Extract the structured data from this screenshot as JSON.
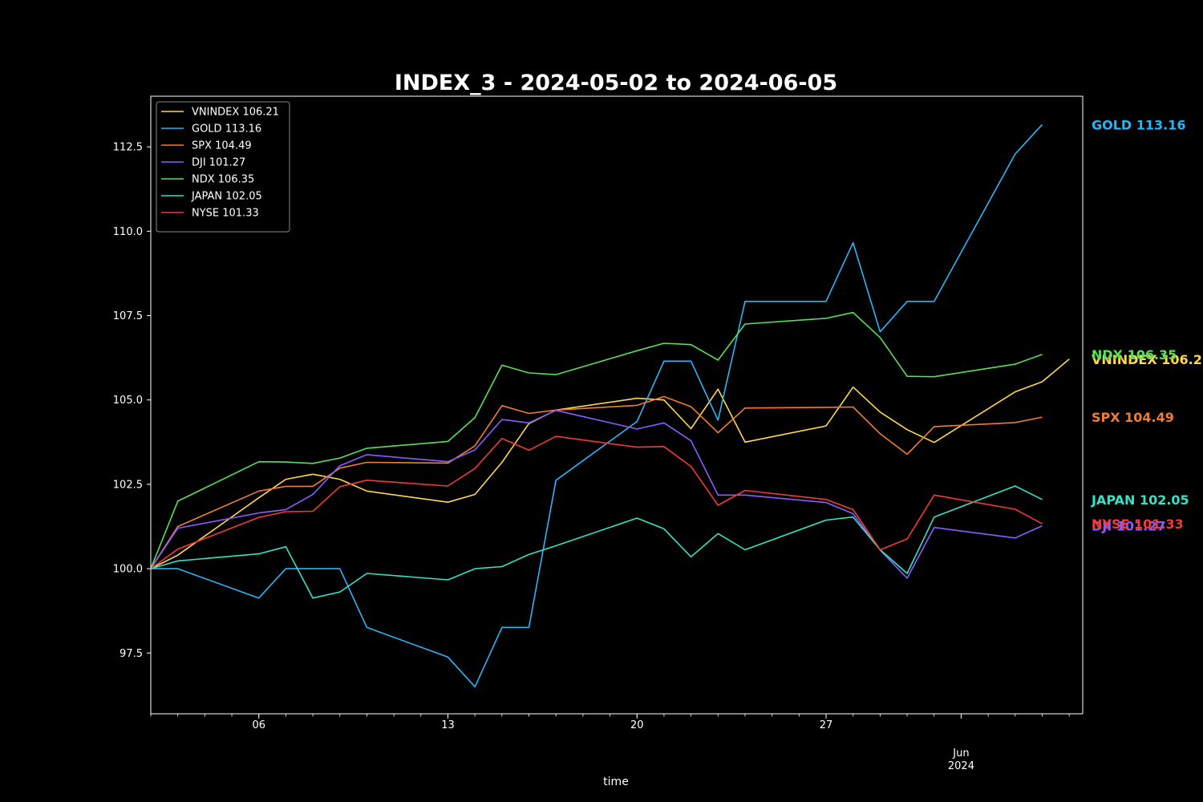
{
  "chart_data": {
    "type": "line",
    "title": "INDEX_3 - 2024-05-02 to 2024-06-05",
    "xlabel": "time",
    "ylabel": "",
    "ylim": [
      95.7,
      114.0
    ],
    "yticks": [
      97.5,
      100.0,
      102.5,
      105.0,
      107.5,
      110.0,
      112.5
    ],
    "ytick_labels": [
      "97.5",
      "100.0",
      "102.5",
      "105.0",
      "107.5",
      "110.0",
      "112.5"
    ],
    "xlim": [
      "2024-05-02",
      "2024-06-05 12:00"
    ],
    "xticks": [
      {
        "date": "2024-05-06",
        "label": "06",
        "sub": ""
      },
      {
        "date": "2024-05-13",
        "label": "13",
        "sub": ""
      },
      {
        "date": "2024-05-20",
        "label": "20",
        "sub": ""
      },
      {
        "date": "2024-05-27",
        "label": "27",
        "sub": ""
      },
      {
        "date": "2024-06-01",
        "label": "Jun",
        "sub": "2024"
      }
    ],
    "grid": false,
    "legend": "top-left",
    "x": [
      "2024-05-02",
      "2024-05-03",
      "2024-05-06",
      "2024-05-07",
      "2024-05-08",
      "2024-05-09",
      "2024-05-10",
      "2024-05-13",
      "2024-05-14",
      "2024-05-15",
      "2024-05-16",
      "2024-05-17",
      "2024-05-20",
      "2024-05-21",
      "2024-05-22",
      "2024-05-23",
      "2024-05-24",
      "2024-05-27",
      "2024-05-28",
      "2024-05-29",
      "2024-05-30",
      "2024-05-31",
      "2024-06-03",
      "2024-06-04",
      "2024-06-05"
    ],
    "series": [
      {
        "name": "VNINDEX 106.21",
        "label": "VNINDEX 106.21",
        "color": "#ffd84a",
        "last": 106.21,
        "values": [
          100.0,
          100.4,
          102.1,
          102.65,
          102.8,
          102.65,
          102.3,
          101.97,
          102.2,
          103.15,
          104.3,
          104.7,
          105.05,
          105.0,
          104.15,
          105.32,
          103.75,
          104.23,
          105.38,
          104.64,
          104.12,
          103.74,
          105.24,
          105.54,
          106.21
        ]
      },
      {
        "name": "GOLD 113.16",
        "label": "GOLD 113.16",
        "color": "#29b6f6",
        "last": 113.16,
        "values": [
          100.0,
          100.0,
          99.13,
          100.0,
          100.0,
          100.0,
          98.26,
          97.38,
          96.5,
          98.26,
          98.26,
          102.62,
          104.36,
          106.15,
          106.15,
          104.4,
          107.92,
          107.92,
          109.66,
          107.02,
          107.92,
          107.92,
          112.29,
          113.16,
          null
        ]
      },
      {
        "name": "SPX 104.49",
        "label": "SPX 104.49",
        "color": "#f07d32",
        "last": 104.49,
        "values": [
          100.0,
          101.25,
          102.3,
          102.44,
          102.44,
          102.98,
          103.15,
          103.13,
          103.64,
          104.83,
          104.6,
          104.7,
          104.84,
          105.1,
          104.8,
          104.03,
          104.76,
          104.78,
          104.79,
          104.0,
          103.39,
          104.21,
          104.33,
          104.49,
          null
        ]
      },
      {
        "name": "DJI 101.27",
        "label": "DJI 101.27",
        "color": "#8a5cff",
        "last": 101.27,
        "values": [
          100.0,
          101.2,
          101.65,
          101.75,
          102.2,
          103.05,
          103.38,
          103.17,
          103.52,
          104.42,
          104.32,
          104.69,
          104.14,
          104.32,
          103.79,
          102.18,
          102.18,
          101.96,
          101.63,
          100.55,
          99.72,
          101.22,
          100.91,
          101.27,
          null
        ]
      },
      {
        "name": "NDX 106.35",
        "label": "NDX 106.35",
        "color": "#57e05a",
        "last": 106.35,
        "values": [
          100.0,
          102.0,
          103.17,
          103.16,
          103.12,
          103.28,
          103.57,
          103.77,
          104.48,
          106.03,
          105.8,
          105.75,
          106.46,
          106.68,
          106.64,
          106.18,
          107.25,
          107.42,
          107.59,
          106.85,
          105.7,
          105.69,
          106.06,
          106.35,
          null
        ]
      },
      {
        "name": "JAPAN 102.05",
        "label": "JAPAN 102.05",
        "color": "#33e3c8",
        "last": 102.05,
        "values": [
          100.0,
          100.23,
          100.44,
          100.65,
          99.13,
          99.31,
          99.86,
          99.67,
          100.0,
          100.06,
          100.42,
          100.68,
          101.5,
          101.18,
          100.35,
          101.04,
          100.56,
          101.44,
          101.53,
          100.56,
          99.86,
          101.53,
          102.45,
          102.05,
          null
        ]
      },
      {
        "name": "NYSE 101.33",
        "label": "NYSE 101.33",
        "color": "#f23a3a",
        "last": 101.33,
        "values": [
          100.0,
          100.58,
          101.52,
          101.69,
          101.7,
          102.43,
          102.62,
          102.45,
          102.97,
          103.86,
          103.51,
          103.92,
          103.6,
          103.62,
          103.03,
          101.88,
          102.32,
          102.05,
          101.75,
          100.56,
          100.88,
          102.18,
          101.76,
          101.33,
          null
        ]
      }
    ]
  }
}
